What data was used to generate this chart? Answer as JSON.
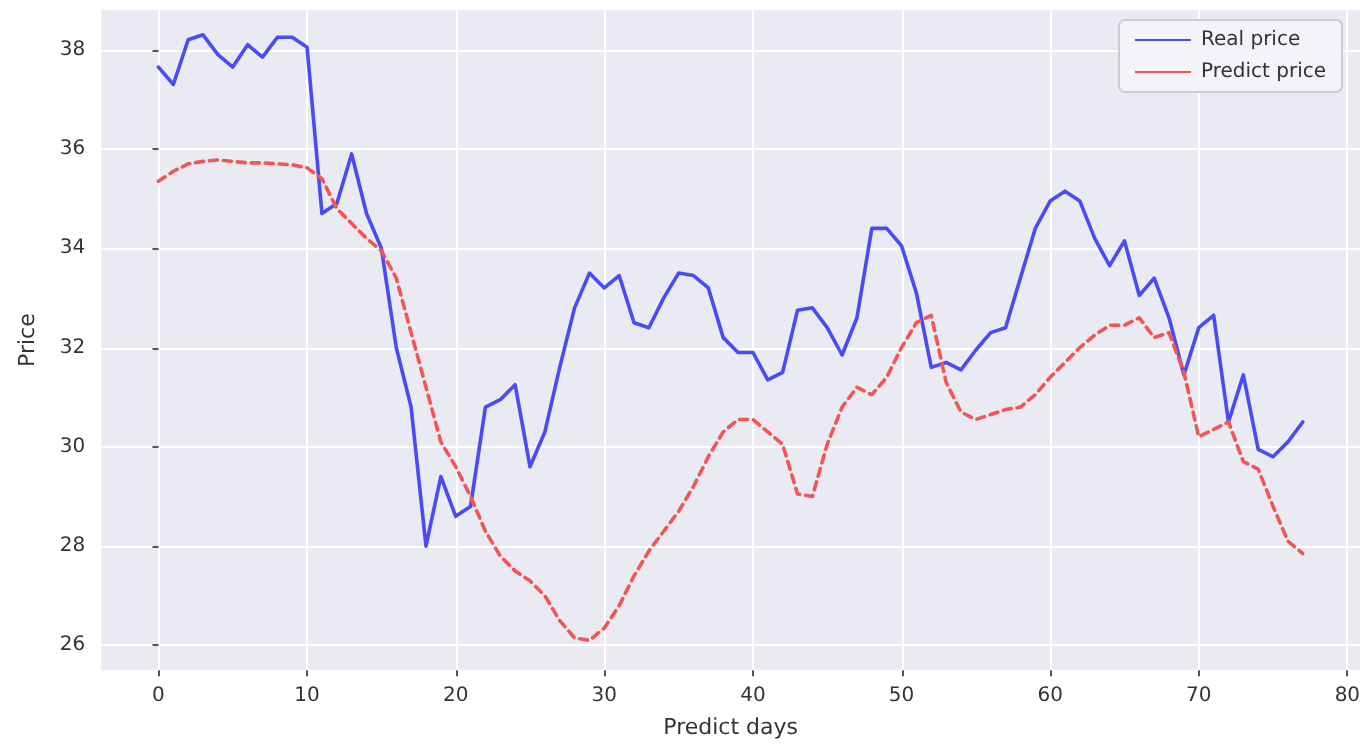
{
  "chart_data": {
    "type": "line",
    "xlabel": "Predict days",
    "ylabel": "Price",
    "x": [
      0,
      1,
      2,
      3,
      4,
      5,
      6,
      7,
      8,
      9,
      10,
      11,
      12,
      13,
      14,
      15,
      16,
      17,
      18,
      19,
      20,
      21,
      22,
      23,
      24,
      25,
      26,
      27,
      28,
      29,
      30,
      31,
      32,
      33,
      34,
      35,
      36,
      37,
      38,
      39,
      40,
      41,
      42,
      43,
      44,
      45,
      46,
      47,
      48,
      49,
      50,
      51,
      52,
      53,
      54,
      55,
      56,
      57,
      58,
      59,
      60,
      61,
      62,
      63,
      64,
      65,
      66,
      67,
      68,
      69,
      70,
      71,
      72,
      73,
      74,
      75,
      76,
      77
    ],
    "series": [
      {
        "name": "Real price",
        "color": "#4b4bf5",
        "line_style": "solid",
        "values": [
          37.65,
          37.3,
          38.2,
          38.3,
          37.9,
          37.65,
          38.1,
          37.85,
          38.25,
          38.25,
          38.05,
          34.7,
          34.9,
          35.9,
          34.7,
          34.0,
          32.0,
          30.8,
          28.0,
          29.4,
          28.6,
          28.8,
          30.8,
          30.95,
          31.25,
          29.6,
          30.3,
          31.6,
          32.8,
          33.5,
          33.2,
          33.45,
          32.5,
          32.4,
          33.0,
          33.5,
          33.45,
          33.2,
          32.2,
          31.9,
          31.9,
          31.35,
          31.5,
          32.75,
          32.8,
          32.4,
          31.85,
          32.6,
          34.4,
          34.4,
          34.05,
          33.1,
          31.6,
          31.7,
          31.55,
          31.95,
          32.3,
          32.4,
          33.4,
          34.4,
          34.95,
          35.15,
          34.95,
          34.2,
          33.65,
          34.15,
          33.05,
          33.4,
          32.6,
          31.45,
          32.4,
          32.65,
          30.5,
          31.45,
          29.95,
          29.8,
          30.1,
          30.5
        ]
      },
      {
        "name": "Predict price",
        "color": "#f25555",
        "line_style": "dashed",
        "values": [
          35.35,
          35.55,
          35.7,
          35.75,
          35.78,
          35.75,
          35.72,
          35.72,
          35.7,
          35.68,
          35.62,
          35.4,
          34.8,
          34.5,
          34.2,
          33.95,
          33.4,
          32.3,
          31.2,
          30.1,
          29.6,
          29.0,
          28.3,
          27.8,
          27.5,
          27.3,
          27.0,
          26.5,
          26.15,
          26.1,
          26.35,
          26.8,
          27.4,
          27.9,
          28.3,
          28.7,
          29.2,
          29.8,
          30.3,
          30.55,
          30.55,
          30.3,
          30.05,
          29.05,
          29.0,
          30.05,
          30.8,
          31.2,
          31.05,
          31.4,
          32.0,
          32.5,
          32.65,
          31.3,
          30.7,
          30.55,
          30.65,
          30.75,
          30.8,
          31.05,
          31.4,
          31.7,
          32.0,
          32.25,
          32.45,
          32.45,
          32.6,
          32.2,
          32.3,
          31.5,
          30.2,
          30.35,
          30.5,
          29.7,
          29.55,
          28.8,
          28.1,
          27.85
        ]
      }
    ],
    "xlim": [
      -3.85,
      80.85
    ],
    "xticks": [
      0,
      10,
      20,
      30,
      40,
      50,
      60,
      70,
      80
    ],
    "ylim": [
      25.5,
      38.8
    ],
    "yticks": [
      26,
      28,
      30,
      32,
      34,
      36,
      38
    ],
    "grid": true,
    "legend": "top right",
    "marker": "none"
  }
}
